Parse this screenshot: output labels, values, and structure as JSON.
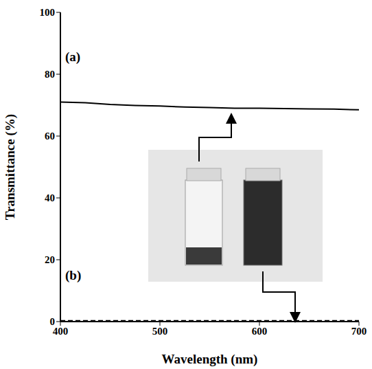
{
  "chart_data": {
    "type": "line",
    "x_label": "Wavelength (nm)",
    "y_label": "Transmittance (%)",
    "x": [
      400,
      425,
      450,
      475,
      500,
      525,
      550,
      575,
      600,
      625,
      650,
      675,
      700
    ],
    "series": [
      {
        "name": "(a)",
        "color": "#000000",
        "line_style": "solid",
        "values": [
          71,
          70.8,
          70.2,
          69.9,
          69.7,
          69.4,
          69.2,
          69,
          69,
          68.9,
          68.8,
          68.7,
          68.5
        ]
      },
      {
        "name": "(b)",
        "color": "#000000",
        "line_style": "dashed",
        "values": [
          0.3,
          0.3,
          0.3,
          0.3,
          0.3,
          0.3,
          0.3,
          0.3,
          0.3,
          0.3,
          0.3,
          0.3,
          0.3
        ]
      }
    ],
    "xlim": [
      400,
      700
    ],
    "ylim": [
      0,
      100
    ],
    "xticks": [
      400,
      500,
      600,
      700
    ],
    "yticks": [
      0,
      20,
      40,
      60,
      80,
      100
    ],
    "grid": false
  }
}
